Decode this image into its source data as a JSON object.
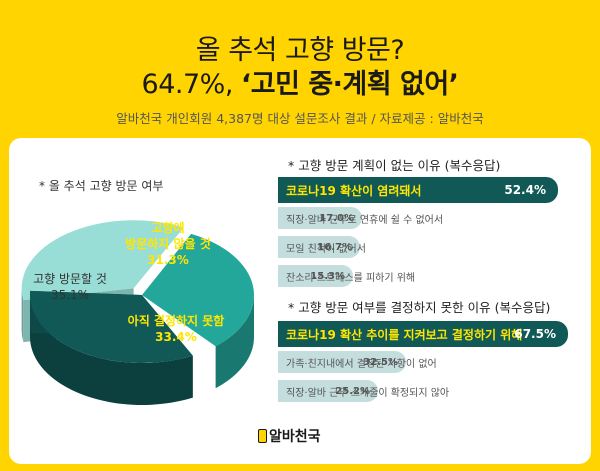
{
  "header": {
    "title_line1": "올 추석 고향 방문?",
    "title_line2_pct": "64.7%, ",
    "title_line2_quote": "‘고민 중·계획 없어’",
    "subtitle": "알바천국 개인회원 4,387명 대상 설문조사 결과 / 자료제공 : 알바천국"
  },
  "chart_data": [
    {
      "type": "pie",
      "title": "* 올 추석 고향 방문 여부",
      "categories": [
        "고향 방문할 것",
        "고향에 방문하지 않을 것",
        "아직 결정하지 못함"
      ],
      "values": [
        35.1,
        31.3,
        33.4
      ],
      "labels": [
        "35.1%",
        "31.3%",
        "33.4%"
      ],
      "colors": [
        "#99DED6",
        "#23A79A",
        "#115956"
      ],
      "label_color": [
        "#333333",
        "#FFE600",
        "#FFE600"
      ],
      "label_lines": [
        [
          "고향 방문할 것"
        ],
        [
          "고향에",
          "방문하지 않을 것"
        ],
        [
          "아직 결정하지 못함"
        ]
      ]
    },
    {
      "type": "bar",
      "orientation": "horizontal",
      "title": "* 고향 방문 계획이 없는 이유 (복수응답)",
      "categories": [
        "코로나19 확산이 염려돼서",
        "직장·알바 근무로 연휴에 쉴 수 없어서",
        "모일 친척이 없어서",
        "잔소리·스트레스를 피하기 위해"
      ],
      "values": [
        52.4,
        17.0,
        16.7,
        15.3
      ],
      "labels": [
        "52.4%",
        "17.0%",
        "16.7%",
        "15.3%"
      ],
      "colors": [
        "#115956",
        "#C4DEDE",
        "#C4DEDE",
        "#C4DEDE"
      ]
    },
    {
      "type": "bar",
      "orientation": "horizontal",
      "title": "* 고향 방문 여부를 결정하지 못한 이유 (복수응답)",
      "categories": [
        "코로나19 확산 추이를 지켜보고 결정하기 위해",
        "가족·친지내에서 결정된 사항이 없어",
        "직장·알바 근무 스케줄이 확정되지 않아"
      ],
      "values": [
        67.5,
        32.5,
        25.2
      ],
      "labels": [
        "67.5%",
        "32.5%",
        "25.2%"
      ],
      "colors": [
        "#115956",
        "#C4DEDE",
        "#C4DEDE"
      ]
    }
  ],
  "logo": {
    "text": "알바천국"
  }
}
